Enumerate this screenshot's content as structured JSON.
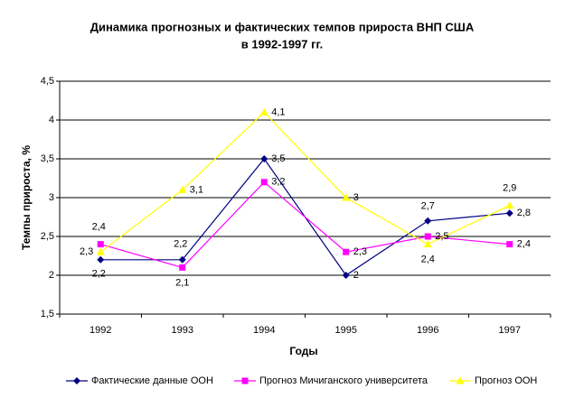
{
  "chart_data": {
    "type": "line",
    "title": "Динамика прогнозных и фактических темпов прироста ВНП США",
    "subtitle": "в 1992-1997 гг.",
    "x_label": "Годы",
    "y_label": "Темпы прироста, %",
    "categories": [
      "1992",
      "1993",
      "1994",
      "1995",
      "1996",
      "1997"
    ],
    "ylim": [
      1.5,
      4.5
    ],
    "yticks": [
      {
        "value": 1.5,
        "label": "1,5"
      },
      2,
      {
        "value": 2.5,
        "label": "2,5"
      },
      3,
      {
        "value": 3.5,
        "label": "3,5"
      },
      4,
      {
        "value": 4.5,
        "label": "4,5"
      }
    ],
    "grid": true,
    "legend": "bottom",
    "series": [
      {
        "name": "Фактические данные ООН",
        "color": "#000080",
        "marker": "diamond",
        "values": [
          2.2,
          2.2,
          3.5,
          2,
          2.7,
          2.8
        ],
        "value_labels": [
          "2,2",
          "2,2",
          "3,5",
          "2",
          "2,7",
          "2,8"
        ]
      },
      {
        "name": "Прогноз Мичиганского университета",
        "color": "#ff00ff",
        "marker": "square",
        "values": [
          2.4,
          2.1,
          3.2,
          2.3,
          2.5,
          2.4
        ],
        "value_labels": [
          "2,4",
          "2,1",
          "3,2",
          "2,3",
          "2,5",
          "2,4"
        ]
      },
      {
        "name": "Прогноз ООН",
        "color": "#ffff00",
        "marker": "triangle",
        "values": [
          2.3,
          3.1,
          4.1,
          3,
          2.4,
          2.9
        ],
        "value_labels": [
          "2,3",
          "3,1",
          "4,1",
          "3",
          "2,4",
          "2,9"
        ]
      }
    ]
  }
}
